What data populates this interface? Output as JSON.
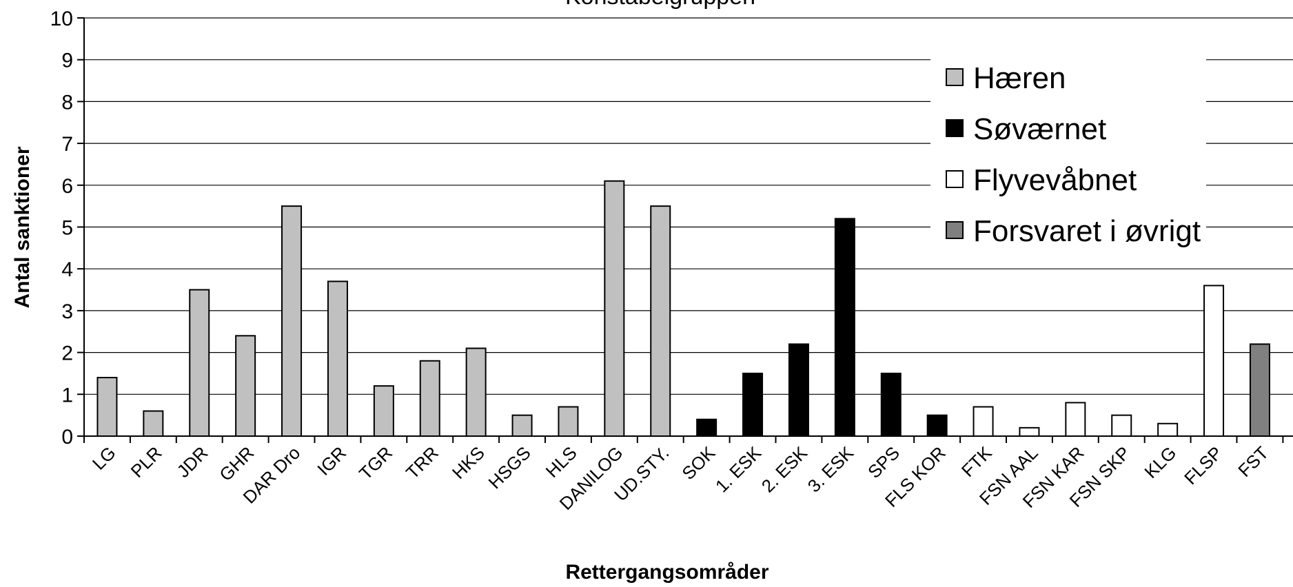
{
  "chart_data": {
    "type": "bar",
    "title": "Konstabelgruppen",
    "xlabel": "Rettergangsområder",
    "ylabel": "Antal sanktioner",
    "ylim": [
      0,
      10
    ],
    "yticks": [
      "0",
      "1",
      "2",
      "3",
      "4",
      "5",
      "6",
      "7",
      "8",
      "9",
      "10"
    ],
    "grid": true,
    "legend_position": "top-right",
    "categories": [
      "LG",
      "PLR",
      "JDR",
      "GHR",
      "DAR Dro",
      "IGR",
      "TGR",
      "TRR",
      "HKS",
      "HSGS",
      "HLS",
      "DANILOG",
      "UD.STY.",
      "SOK",
      "1. ESK",
      "2. ESK",
      "3. ESK",
      "SPS",
      "FLS KOR",
      "FTK",
      "FSN AAL",
      "FSN KAR",
      "FSN SKP",
      "KLG",
      "FLSP",
      "FST"
    ],
    "series": [
      {
        "name": "Hæren",
        "color": "#c0c0c0",
        "values": [
          1.4,
          0.6,
          3.5,
          2.4,
          5.5,
          3.7,
          1.2,
          1.8,
          2.1,
          0.5,
          0.7,
          6.1,
          5.5,
          null,
          null,
          null,
          null,
          null,
          null,
          null,
          null,
          null,
          null,
          null,
          null,
          null
        ]
      },
      {
        "name": "Søværnet",
        "color": "#000000",
        "values": [
          null,
          null,
          null,
          null,
          null,
          null,
          null,
          null,
          null,
          null,
          null,
          null,
          null,
          0.4,
          1.5,
          2.2,
          5.2,
          1.5,
          0.5,
          null,
          null,
          null,
          null,
          null,
          null,
          null
        ]
      },
      {
        "name": "Flyvevåbnet",
        "color": "#ffffff",
        "values": [
          null,
          null,
          null,
          null,
          null,
          null,
          null,
          null,
          null,
          null,
          null,
          null,
          null,
          null,
          null,
          null,
          null,
          null,
          null,
          0.7,
          0.2,
          0.8,
          0.5,
          0.3,
          3.6,
          null
        ]
      },
      {
        "name": "Forsvaret i øvrigt",
        "color": "#808080",
        "values": [
          null,
          null,
          null,
          null,
          null,
          null,
          null,
          null,
          null,
          null,
          null,
          null,
          null,
          null,
          null,
          null,
          null,
          null,
          null,
          null,
          null,
          null,
          null,
          null,
          null,
          2.2
        ]
      }
    ]
  }
}
